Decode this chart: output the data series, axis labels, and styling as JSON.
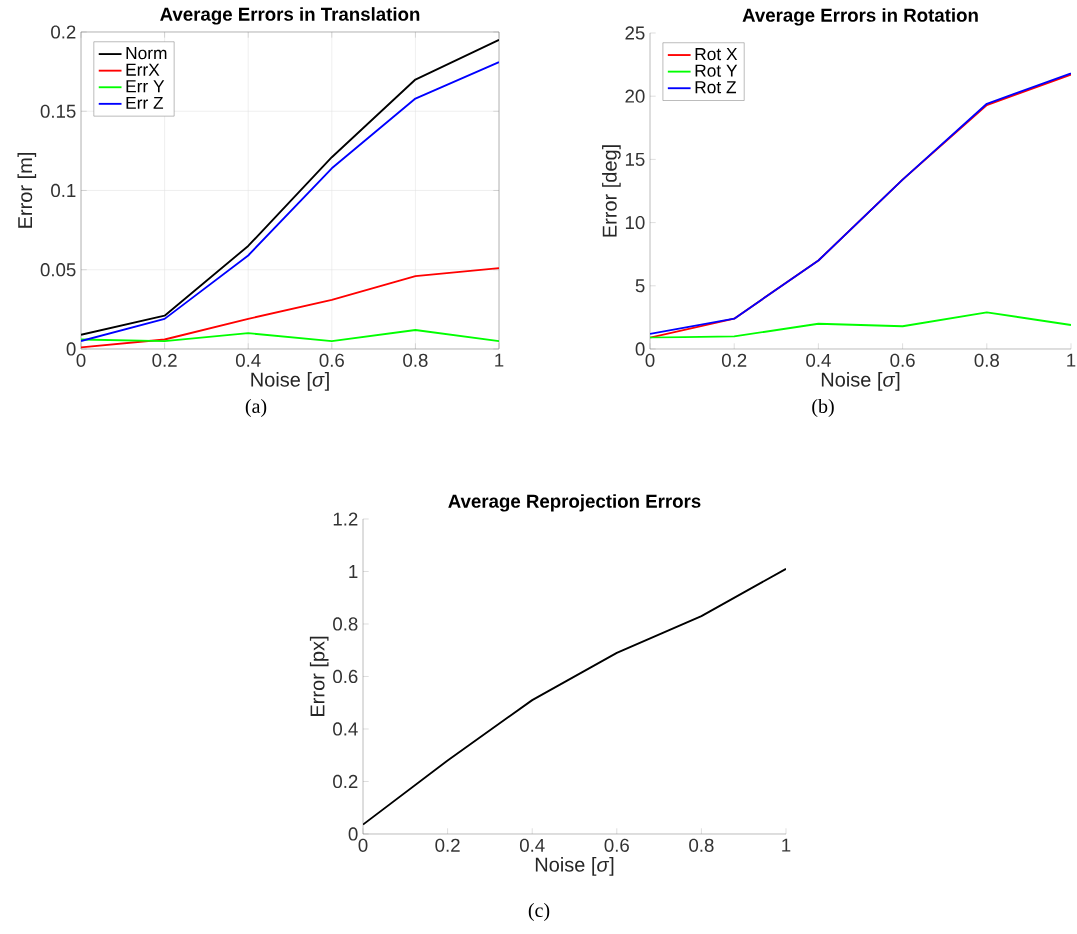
{
  "chart_data": [
    {
      "type": "line",
      "title": "Average Errors in Translation",
      "xlabel": "Noise [*σ*]",
      "ylabel": "Error [m]",
      "x": [
        0,
        0.2,
        0.4,
        0.6,
        0.8,
        1
      ],
      "xlim": [
        0,
        1
      ],
      "ylim": [
        0,
        0.2
      ],
      "xticks": [
        0,
        0.2,
        0.4,
        0.6,
        0.8,
        1
      ],
      "yticks": [
        0,
        0.05,
        0.1,
        0.15,
        0.2
      ],
      "grid": true,
      "legend": "top left",
      "annotations": [
        "(a)"
      ],
      "series": [
        {
          "name": "Norm",
          "color": "#000000",
          "values": [
            0.009,
            0.021,
            0.065,
            0.121,
            0.17,
            0.195
          ]
        },
        {
          "name": "ErrX",
          "color": "#ff0000",
          "values": [
            0.001,
            0.006,
            0.019,
            0.031,
            0.046,
            0.051
          ]
        },
        {
          "name": "Err Y",
          "color": "#00ff00",
          "values": [
            0.006,
            0.005,
            0.01,
            0.005,
            0.012,
            0.005
          ]
        },
        {
          "name": "Err Z",
          "color": "#0000ff",
          "values": [
            0.005,
            0.019,
            0.059,
            0.114,
            0.158,
            0.181
          ]
        }
      ]
    },
    {
      "type": "line",
      "title": "Average Errors in Rotation",
      "xlabel": "Noise [*σ*]",
      "ylabel": "Error [deg]",
      "x": [
        0,
        0.2,
        0.4,
        0.6,
        0.8,
        1
      ],
      "xlim": [
        0,
        1
      ],
      "ylim": [
        0,
        25
      ],
      "xticks": [
        0,
        0.2,
        0.4,
        0.6,
        0.8,
        1
      ],
      "yticks": [
        0,
        5,
        10,
        15,
        20,
        25
      ],
      "legend": "top left",
      "annotations": [
        "(b)"
      ],
      "series": [
        {
          "name": "Rot X",
          "color": "#ff0000",
          "values": [
            0.9,
            2.4,
            7.0,
            13.4,
            19.3,
            21.7
          ]
        },
        {
          "name": "Rot Y",
          "color": "#00ff00",
          "values": [
            0.9,
            1.0,
            2.0,
            1.8,
            2.9,
            1.9
          ]
        },
        {
          "name": "Rot Z",
          "color": "#0000ff",
          "values": [
            1.2,
            2.4,
            7.0,
            13.4,
            19.4,
            21.8
          ]
        }
      ]
    },
    {
      "type": "line",
      "title": "Average Reprojection Errors",
      "xlabel": "Noise [*σ*]",
      "ylabel": "Error [px]",
      "x": [
        0,
        0.2,
        0.4,
        0.6,
        0.8,
        1
      ],
      "xlim": [
        0,
        1
      ],
      "ylim": [
        0,
        1.2
      ],
      "xticks": [
        0,
        0.2,
        0.4,
        0.6,
        0.8,
        1
      ],
      "yticks": [
        0,
        0.2,
        0.4,
        0.6,
        0.8,
        1,
        1.2
      ],
      "annotations": [
        "(c)"
      ],
      "series": [
        {
          "color": "#000000",
          "values": [
            0.036,
            0.28,
            0.51,
            0.69,
            0.83,
            1.01
          ]
        }
      ]
    }
  ]
}
